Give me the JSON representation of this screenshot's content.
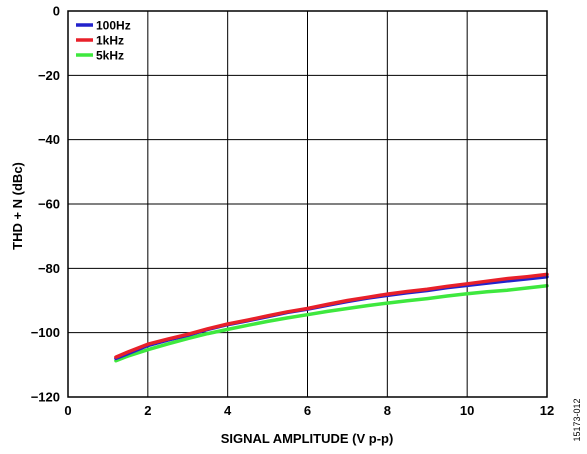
{
  "chart_data": {
    "type": "line",
    "xlabel": "SIGNAL AMPLITUDE (V p-p)",
    "ylabel": "THD + N (dBc)",
    "xlim": [
      0,
      12
    ],
    "ylim": [
      -120,
      0
    ],
    "xticks": [
      0,
      2,
      4,
      6,
      8,
      10,
      12
    ],
    "yticks": [
      0,
      -20,
      -40,
      -60,
      -80,
      -100,
      -120
    ],
    "ytick_labels": [
      "0",
      "−20",
      "−40",
      "−60",
      "−80",
      "−100",
      "−120"
    ],
    "grid": true,
    "legend_position": "top-left",
    "series": [
      {
        "name": "100Hz",
        "color": "#2222cc",
        "x": [
          1.2,
          1.5,
          2,
          2.5,
          3,
          3.5,
          4,
          4.5,
          5,
          5.5,
          6,
          6.5,
          7,
          7.5,
          8,
          8.5,
          9,
          9.5,
          10,
          10.5,
          11,
          11.5,
          12
        ],
        "y": [
          -108,
          -106.5,
          -104,
          -102.3,
          -100.8,
          -99,
          -97.5,
          -96.3,
          -95,
          -93.7,
          -92.7,
          -91.5,
          -90.3,
          -89.3,
          -88.4,
          -87.6,
          -86.9,
          -86,
          -85.3,
          -84.6,
          -83.9,
          -83.3,
          -82.6
        ]
      },
      {
        "name": "1kHz",
        "color": "#e8202a",
        "x": [
          1.2,
          1.5,
          2,
          2.5,
          3,
          3.5,
          4,
          4.5,
          5,
          5.5,
          6,
          6.5,
          7,
          7.5,
          8,
          8.5,
          9,
          9.5,
          10,
          10.5,
          11,
          11.5,
          12
        ],
        "y": [
          -107.6,
          -106,
          -103.6,
          -102,
          -100.5,
          -98.8,
          -97.3,
          -96.1,
          -94.8,
          -93.5,
          -92.5,
          -91.2,
          -90,
          -89,
          -88,
          -87.2,
          -86.5,
          -85.6,
          -84.8,
          -84,
          -83.2,
          -82.6,
          -81.9
        ]
      },
      {
        "name": "5kHz",
        "color": "#3ee83e",
        "x": [
          1.2,
          1.5,
          2,
          2.5,
          3,
          3.5,
          4,
          4.5,
          5,
          5.5,
          6,
          6.5,
          7,
          7.5,
          8,
          8.5,
          9,
          9.5,
          10,
          10.5,
          11,
          11.5,
          12
        ],
        "y": [
          -108.7,
          -107.3,
          -105.3,
          -103.5,
          -101.8,
          -100.3,
          -99,
          -97.7,
          -96.5,
          -95.4,
          -94.4,
          -93.4,
          -92.5,
          -91.6,
          -90.8,
          -90.1,
          -89.4,
          -88.6,
          -87.9,
          -87.3,
          -86.8,
          -86.1,
          -85.4
        ]
      }
    ]
  },
  "figure_id": "15173-012"
}
